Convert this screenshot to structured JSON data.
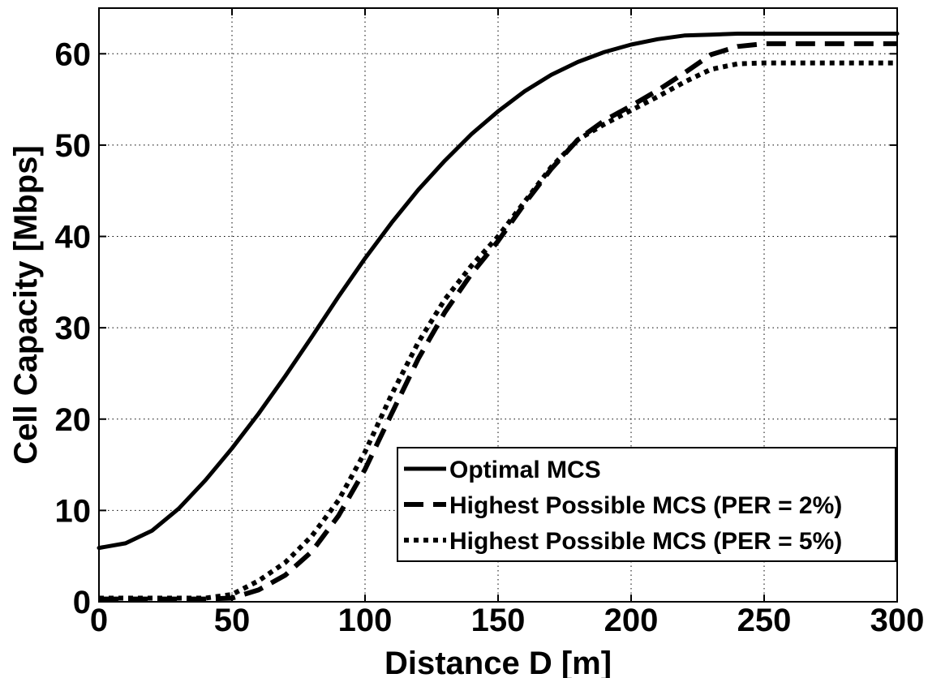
{
  "chart_data": {
    "type": "line",
    "xlabel": "Distance D [m]",
    "ylabel": "Cell Capacity [Mbps]",
    "xlim": [
      0,
      300
    ],
    "ylim": [
      0,
      65
    ],
    "xticks": [
      0,
      50,
      100,
      150,
      200,
      250,
      300
    ],
    "yticks": [
      0,
      10,
      20,
      30,
      40,
      50,
      60
    ],
    "xtick_labels": [
      "0",
      "50",
      "100",
      "150",
      "200",
      "250",
      "300"
    ],
    "ytick_labels": [
      "0",
      "10",
      "20",
      "30",
      "40",
      "50",
      "60"
    ],
    "grid": true,
    "legend_position": "bottom-right",
    "series": [
      {
        "name": "Optimal MCS",
        "style": "solid",
        "x": [
          0,
          10,
          20,
          30,
          40,
          50,
          60,
          70,
          80,
          90,
          100,
          110,
          120,
          130,
          140,
          150,
          160,
          170,
          180,
          190,
          200,
          210,
          220,
          230,
          240,
          250,
          260,
          270,
          280,
          290,
          300
        ],
        "y": [
          5.9,
          6.4,
          7.8,
          10.2,
          13.3,
          16.8,
          20.6,
          24.7,
          29.0,
          33.4,
          37.6,
          41.5,
          45.1,
          48.3,
          51.2,
          53.7,
          55.9,
          57.7,
          59.1,
          60.2,
          61.0,
          61.6,
          62.0,
          62.1,
          62.2,
          62.2,
          62.2,
          62.2,
          62.2,
          62.2,
          62.2
        ]
      },
      {
        "name": "Highest Possible MCS (PER = 2%)",
        "style": "dashed",
        "x": [
          0,
          10,
          20,
          30,
          40,
          50,
          60,
          70,
          80,
          90,
          100,
          110,
          120,
          130,
          140,
          150,
          160,
          170,
          180,
          190,
          200,
          210,
          220,
          230,
          240,
          250,
          260,
          270,
          280,
          290,
          300
        ],
        "y": [
          0.3,
          0.3,
          0.3,
          0.3,
          0.3,
          0.4,
          1.3,
          2.9,
          5.5,
          9.4,
          14.5,
          20.6,
          26.6,
          31.7,
          35.9,
          39.5,
          43.6,
          47.4,
          50.6,
          52.7,
          54.3,
          56.0,
          57.9,
          59.9,
          60.8,
          61.1,
          61.1,
          61.1,
          61.1,
          61.1,
          61.1
        ]
      },
      {
        "name": "Highest Possible MCS (PER = 5%)",
        "style": "dotted",
        "x": [
          0,
          10,
          20,
          30,
          40,
          50,
          60,
          70,
          80,
          90,
          100,
          110,
          120,
          130,
          140,
          150,
          160,
          170,
          180,
          190,
          200,
          210,
          220,
          230,
          240,
          250,
          260,
          270,
          280,
          290,
          300
        ],
        "y": [
          0.4,
          0.4,
          0.4,
          0.4,
          0.4,
          0.8,
          2.3,
          4.3,
          7.2,
          11.1,
          16.4,
          22.7,
          28.4,
          33.1,
          36.8,
          40.0,
          43.8,
          47.6,
          50.6,
          52.3,
          53.8,
          55.3,
          56.9,
          58.3,
          58.9,
          59.0,
          59.0,
          59.0,
          59.0,
          59.0,
          59.0
        ]
      }
    ]
  }
}
